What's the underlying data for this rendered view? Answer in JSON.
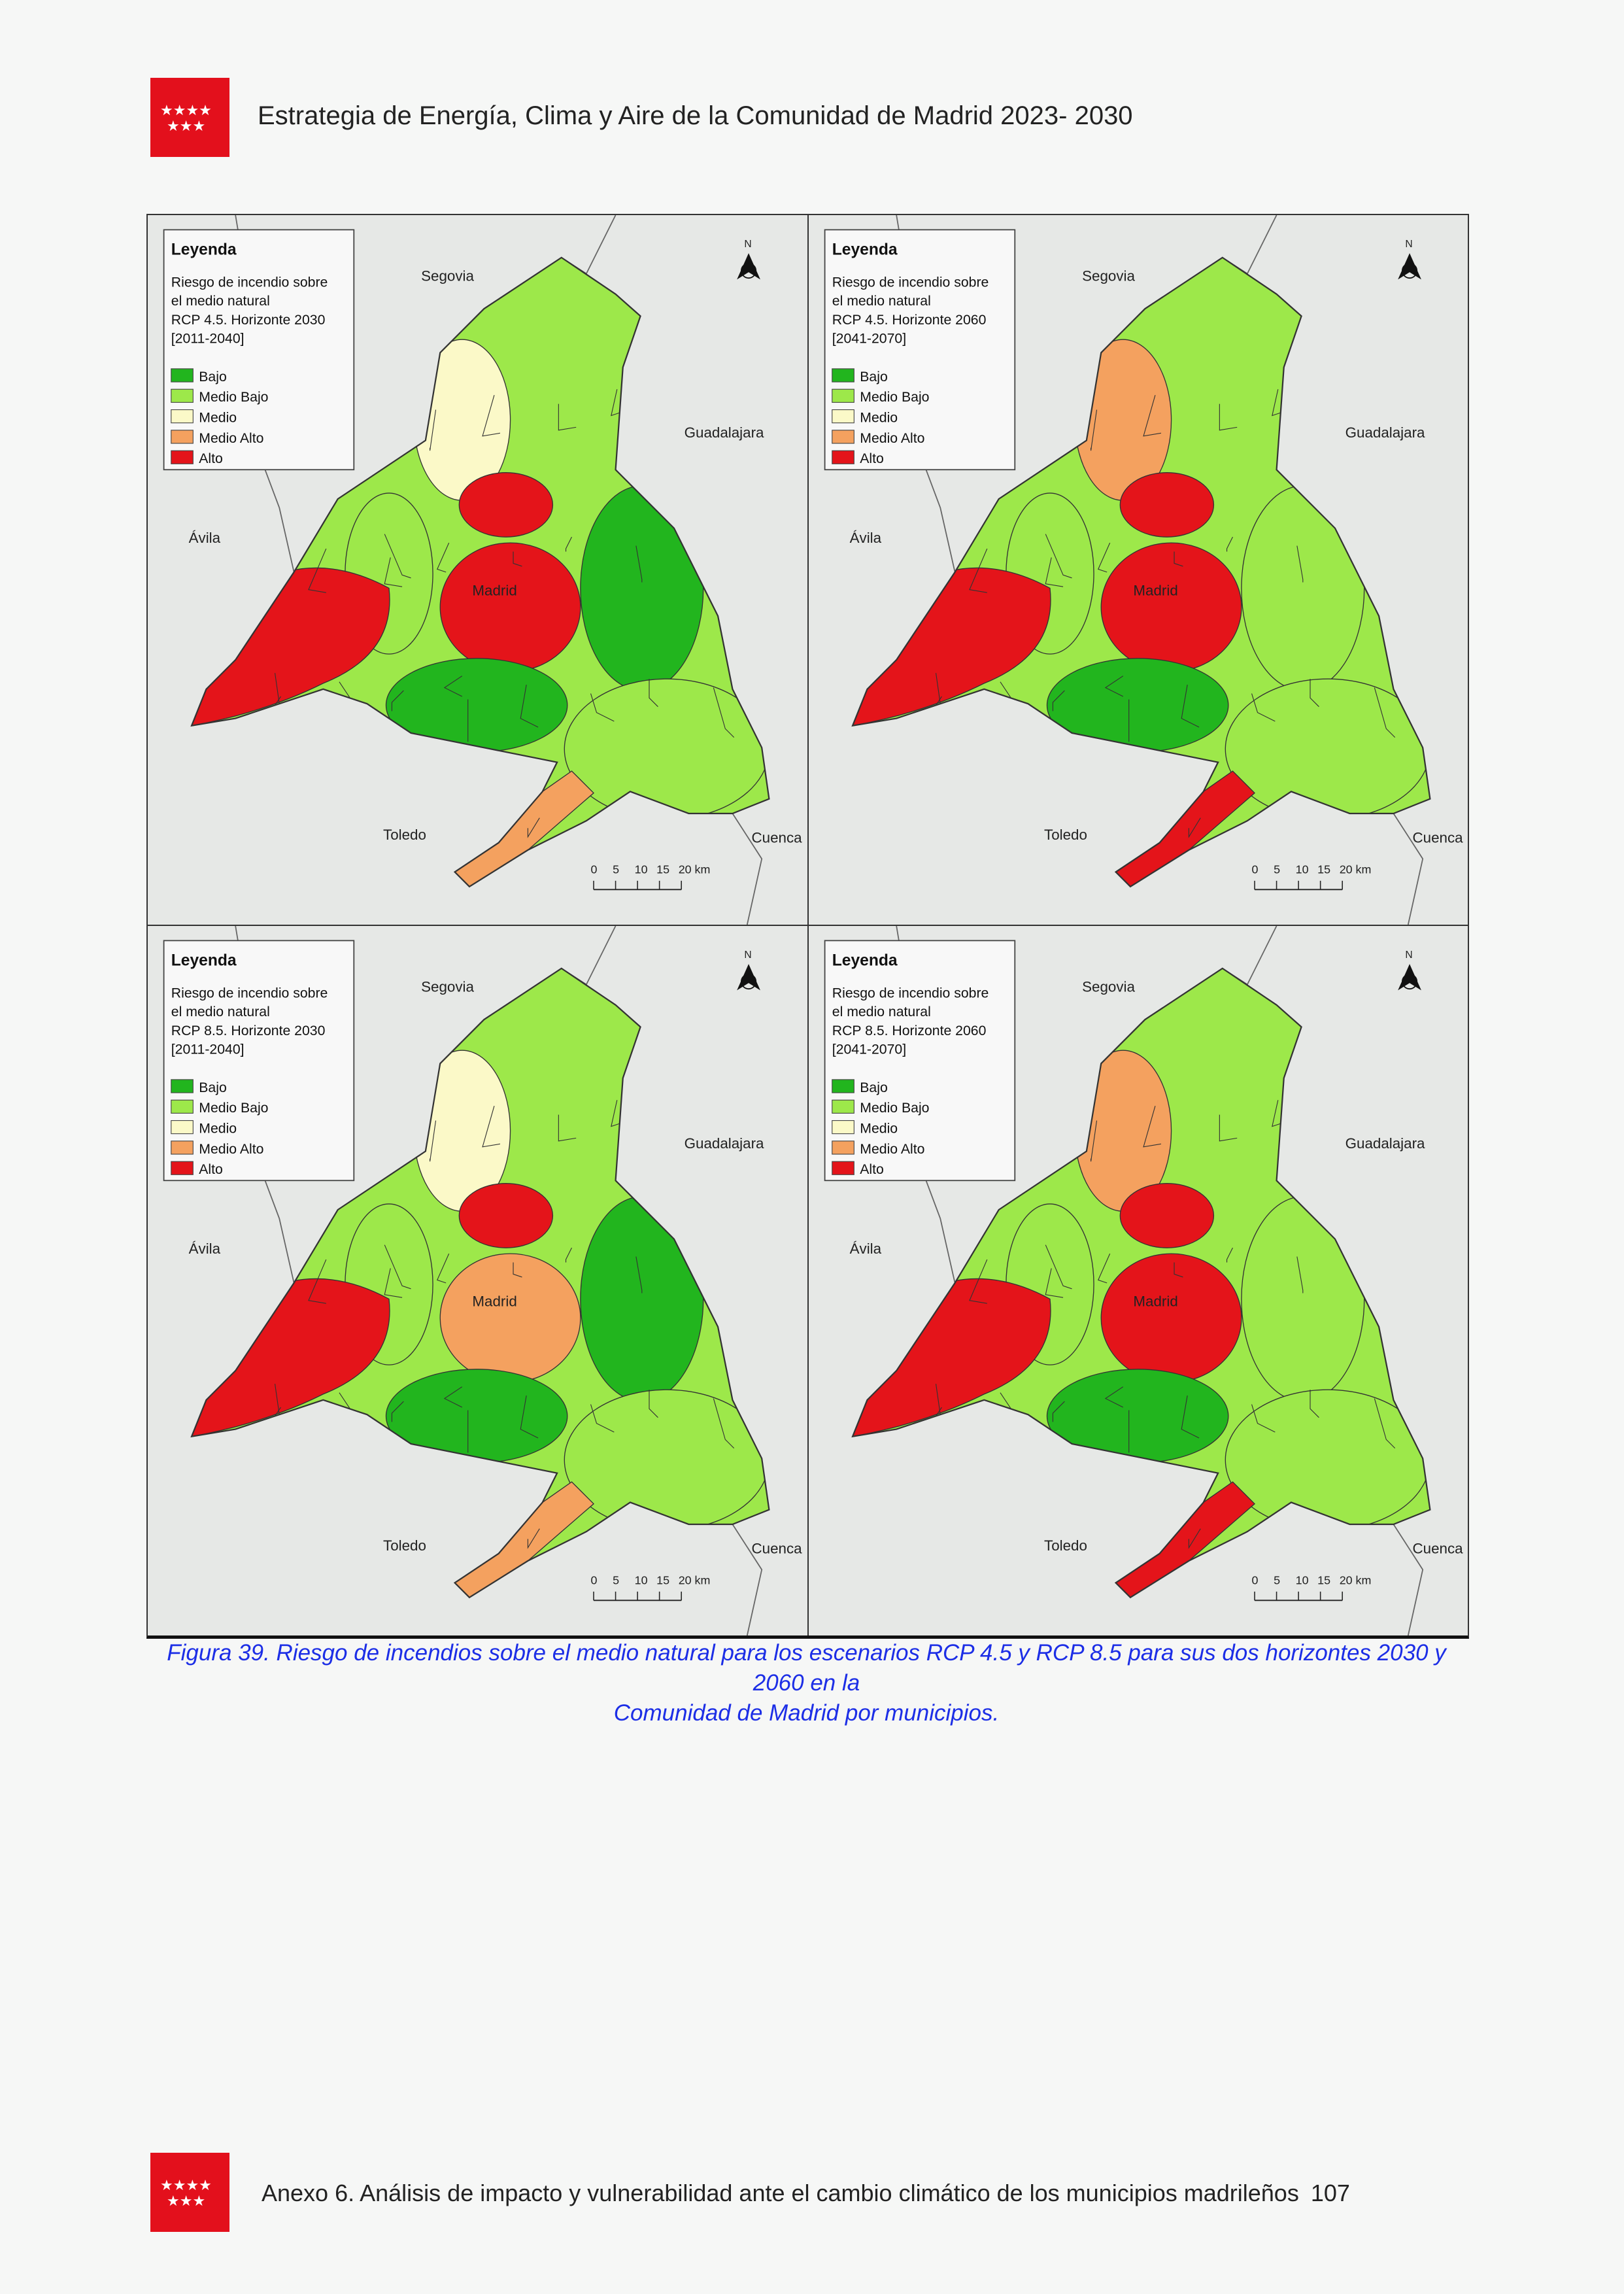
{
  "header": {
    "title": "Estrategia de Energía, Clima y Aire de la Comunidad de Madrid 2023- 2030"
  },
  "colors": {
    "logo": "#e3101c",
    "caption": "#1c2ee6",
    "levels": [
      "#22b51e",
      "#9de84a",
      "#fbf9c8",
      "#f4a15f",
      "#e4141a"
    ]
  },
  "legend": {
    "title": "Leyenda",
    "items": [
      "Bajo",
      "Medio Bajo",
      "Medio",
      "Medio Alto",
      "Alto"
    ]
  },
  "map_labels": {
    "segovia": "Segovia",
    "guadalajara": "Guadalajara",
    "avila": "Ávila",
    "madrid": "Madrid",
    "toledo": "Toledo",
    "cuenca": "Cuenca",
    "north": "N",
    "scale": [
      "0",
      "5",
      "10",
      "15",
      "20 km"
    ]
  },
  "panels": [
    {
      "subtitle": [
        "Riesgo de incendio sobre",
        "el medio natural",
        "RCP 4.5. Horizonte 2030",
        "[2011-2040]"
      ],
      "zone_levels": [
        1,
        2,
        4,
        4,
        1,
        4,
        0,
        0,
        1,
        3
      ]
    },
    {
      "subtitle": [
        "Riesgo de incendio sobre",
        "el medio natural",
        "RCP 4.5. Horizonte 2060",
        "[2041-2070]"
      ],
      "zone_levels": [
        1,
        3,
        4,
        4,
        1,
        4,
        0,
        1,
        1,
        4
      ]
    },
    {
      "subtitle": [
        "Riesgo de incendio sobre",
        "el medio natural",
        "RCP 8.5. Horizonte 2030",
        "[2011-2040]"
      ],
      "zone_levels": [
        1,
        2,
        4,
        3,
        1,
        4,
        0,
        0,
        1,
        3
      ]
    },
    {
      "subtitle": [
        "Riesgo de incendio sobre",
        "el medio natural",
        "RCP 8.5. Horizonte 2060",
        "[2041-2070]"
      ],
      "zone_levels": [
        1,
        3,
        4,
        4,
        1,
        4,
        0,
        1,
        1,
        4
      ]
    }
  ],
  "caption": {
    "line1": "Figura 39. Riesgo de incendios sobre el medio natural para los escenarios RCP 4.5 y RCP 8.5 para sus dos horizontes 2030 y 2060 en la",
    "line2": "Comunidad de Madrid por municipios."
  },
  "footer": {
    "text": "Anexo 6. Análisis de impacto y vulnerabilidad ante el cambio climático de los municipios madrileños",
    "page": "107"
  }
}
